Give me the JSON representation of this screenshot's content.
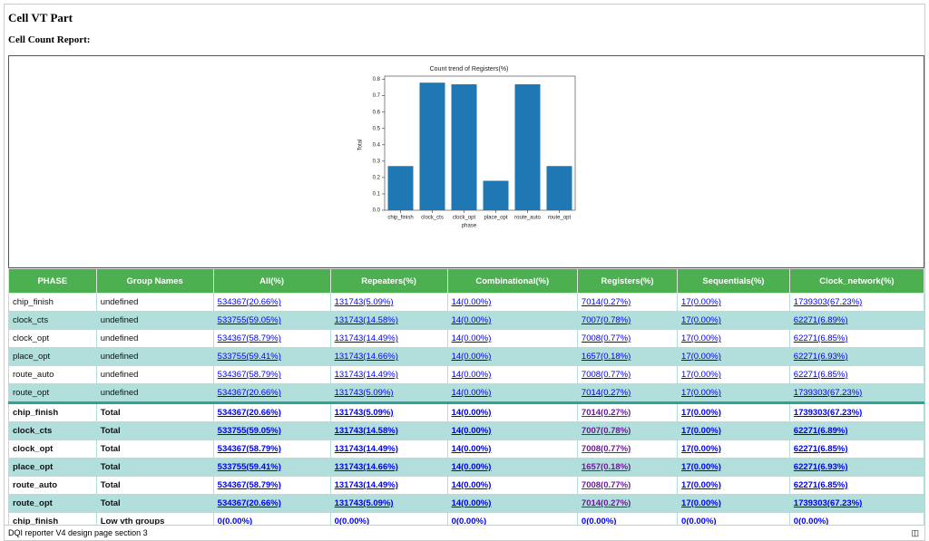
{
  "header": {
    "title": "Cell VT Part",
    "subtitle": "Cell Count Report:"
  },
  "chart_data": {
    "type": "bar",
    "title": "Count trend of Registers(%)",
    "x_label": "phase",
    "y_label": "Total",
    "categories": [
      "chip_finish",
      "clock_cts",
      "clock_opt",
      "place_opt",
      "route_auto",
      "route_opt"
    ],
    "values": [
      0.27,
      0.78,
      0.77,
      0.18,
      0.77,
      0.27
    ],
    "color": "#1f77b4",
    "ylim": [
      0,
      0.82
    ],
    "yticks": [
      {
        "value": 0,
        "label": "0.0"
      },
      {
        "value": 0.1,
        "label": "0.1"
      },
      {
        "value": 0.2,
        "label": "0.2"
      },
      {
        "value": 0.3,
        "label": "0.3"
      },
      {
        "value": 0.4,
        "label": "0.4"
      },
      {
        "value": 0.5,
        "label": "0.5"
      },
      {
        "value": 0.6,
        "label": "0.6"
      },
      {
        "value": 0.7,
        "label": "0.7"
      },
      {
        "value": 0.8,
        "label": "0.8"
      }
    ]
  },
  "table": {
    "headers": [
      "PHASE",
      "Group Names",
      "All(%)",
      "Repeaters(%)",
      "Combinational(%)",
      "Registers(%)",
      "Sequentials(%)",
      "Clock_network(%)"
    ],
    "rows": [
      [
        "chip_finish",
        "undefined",
        "534367(20.66%)",
        "131743(5.09%)",
        "14(0.00%)",
        "7014(0.27%)",
        "17(0.00%)",
        "1739303(67.23%)"
      ],
      [
        "clock_cts",
        "undefined",
        "533755(59.05%)",
        "131743(14.58%)",
        "14(0.00%)",
        "7007(0.78%)",
        "17(0.00%)",
        "62271(6.89%)"
      ],
      [
        "clock_opt",
        "undefined",
        "534367(58.79%)",
        "131743(14.49%)",
        "14(0.00%)",
        "7008(0.77%)",
        "17(0.00%)",
        "62271(6.85%)"
      ],
      [
        "place_opt",
        "undefined",
        "533755(59.41%)",
        "131743(14.66%)",
        "14(0.00%)",
        "1657(0.18%)",
        "17(0.00%)",
        "62271(6.93%)"
      ],
      [
        "route_auto",
        "undefined",
        "534367(58.79%)",
        "131743(14.49%)",
        "14(0.00%)",
        "7008(0.77%)",
        "17(0.00%)",
        "62271(6.85%)"
      ],
      [
        "route_opt",
        "undefined",
        "534367(20.66%)",
        "131743(5.09%)",
        "14(0.00%)",
        "7014(0.27%)",
        "17(0.00%)",
        "1739303(67.23%)"
      ],
      [
        "chip_finish",
        "Total",
        "534367(20.66%)",
        "131743(5.09%)",
        "14(0.00%)",
        "7014(0.27%)",
        "17(0.00%)",
        "1739303(67.23%)"
      ],
      [
        "clock_cts",
        "Total",
        "533755(59.05%)",
        "131743(14.58%)",
        "14(0.00%)",
        "7007(0.78%)",
        "17(0.00%)",
        "62271(6.89%)"
      ],
      [
        "clock_opt",
        "Total",
        "534367(58.79%)",
        "131743(14.49%)",
        "14(0.00%)",
        "7008(0.77%)",
        "17(0.00%)",
        "62271(6.85%)"
      ],
      [
        "place_opt",
        "Total",
        "533755(59.41%)",
        "131743(14.66%)",
        "14(0.00%)",
        "1657(0.18%)",
        "17(0.00%)",
        "62271(6.93%)"
      ],
      [
        "route_auto",
        "Total",
        "534367(58.79%)",
        "131743(14.49%)",
        "14(0.00%)",
        "7008(0.77%)",
        "17(0.00%)",
        "62271(6.85%)"
      ],
      [
        "route_opt",
        "Total",
        "534367(20.66%)",
        "131743(5.09%)",
        "14(0.00%)",
        "7014(0.27%)",
        "17(0.00%)",
        "1739303(67.23%)"
      ],
      [
        "chip_finish",
        "Low vth groups",
        "0(0.00%)",
        "0(0.00%)",
        "0(0.00%)",
        "0(0.00%)",
        "0(0.00%)",
        "0(0.00%)"
      ]
    ]
  },
  "footer": {
    "text": "DQI reporter V4 design page section 3"
  }
}
